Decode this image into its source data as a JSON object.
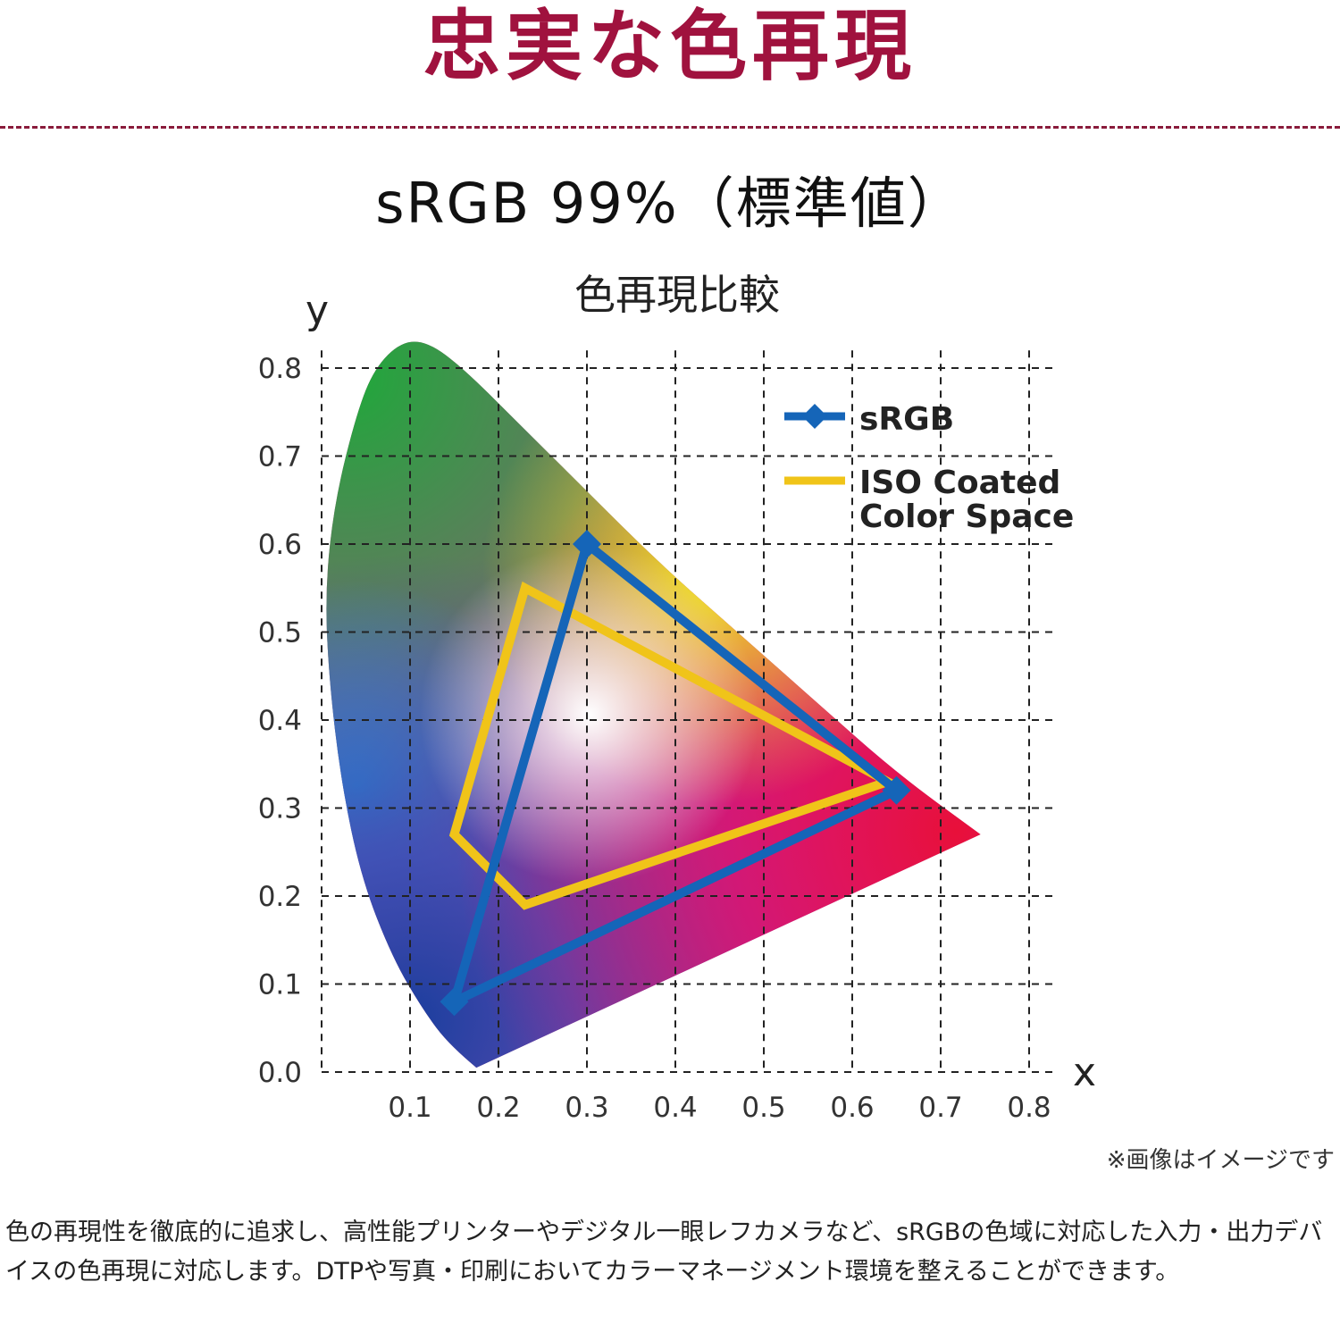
{
  "headline": "忠実な色再現",
  "spec": "sRGB 99%（標準値）",
  "note": "※画像はイメージです",
  "description": "色の再現性を徹底的に追求し、高性能プリンターやデジタル一眼レフカメラなど、sRGBの色域に対応した入力・出力デバイスの色再現に対応します。DTPや写真・印刷においてカラーマネージメント環境を整えることができます。",
  "colors": {
    "accent": "#a0123e",
    "srgb": "#1565b8",
    "iso": "#f0c419"
  },
  "chart_data": {
    "type": "scatter",
    "title": "色再現比較",
    "xlabel": "x",
    "ylabel": "y",
    "xlim": [
      0,
      0.8
    ],
    "ylim": [
      0,
      0.8
    ],
    "x_ticks": [
      "0.1",
      "0.2",
      "0.3",
      "0.4",
      "0.5",
      "0.6",
      "0.7",
      "0.8"
    ],
    "y_ticks": [
      "0.0",
      "0.1",
      "0.2",
      "0.3",
      "0.4",
      "0.5",
      "0.6",
      "0.7",
      "0.8"
    ],
    "grid": true,
    "legend_position": "top-right",
    "series": [
      {
        "name": "sRGB",
        "closed": true,
        "points": [
          {
            "x": 0.3,
            "y": 0.6
          },
          {
            "x": 0.65,
            "y": 0.32
          },
          {
            "x": 0.15,
            "y": 0.08
          }
        ]
      },
      {
        "name": "ISO Coated Color Space",
        "closed": true,
        "points": [
          {
            "x": 0.23,
            "y": 0.55
          },
          {
            "x": 0.64,
            "y": 0.33
          },
          {
            "x": 0.23,
            "y": 0.19
          },
          {
            "x": 0.15,
            "y": 0.27
          }
        ]
      }
    ],
    "locus": [
      {
        "x": 0.175,
        "y": 0.005
      },
      {
        "x": 0.145,
        "y": 0.03
      },
      {
        "x": 0.115,
        "y": 0.07
      },
      {
        "x": 0.08,
        "y": 0.13
      },
      {
        "x": 0.045,
        "y": 0.22
      },
      {
        "x": 0.022,
        "y": 0.33
      },
      {
        "x": 0.008,
        "y": 0.45
      },
      {
        "x": 0.004,
        "y": 0.55
      },
      {
        "x": 0.015,
        "y": 0.65
      },
      {
        "x": 0.04,
        "y": 0.75
      },
      {
        "x": 0.06,
        "y": 0.8
      },
      {
        "x": 0.09,
        "y": 0.83
      },
      {
        "x": 0.12,
        "y": 0.83
      },
      {
        "x": 0.16,
        "y": 0.8
      },
      {
        "x": 0.23,
        "y": 0.73
      },
      {
        "x": 0.3,
        "y": 0.66
      },
      {
        "x": 0.38,
        "y": 0.58
      },
      {
        "x": 0.47,
        "y": 0.5
      },
      {
        "x": 0.56,
        "y": 0.42
      },
      {
        "x": 0.65,
        "y": 0.34
      },
      {
        "x": 0.745,
        "y": 0.27
      }
    ]
  }
}
